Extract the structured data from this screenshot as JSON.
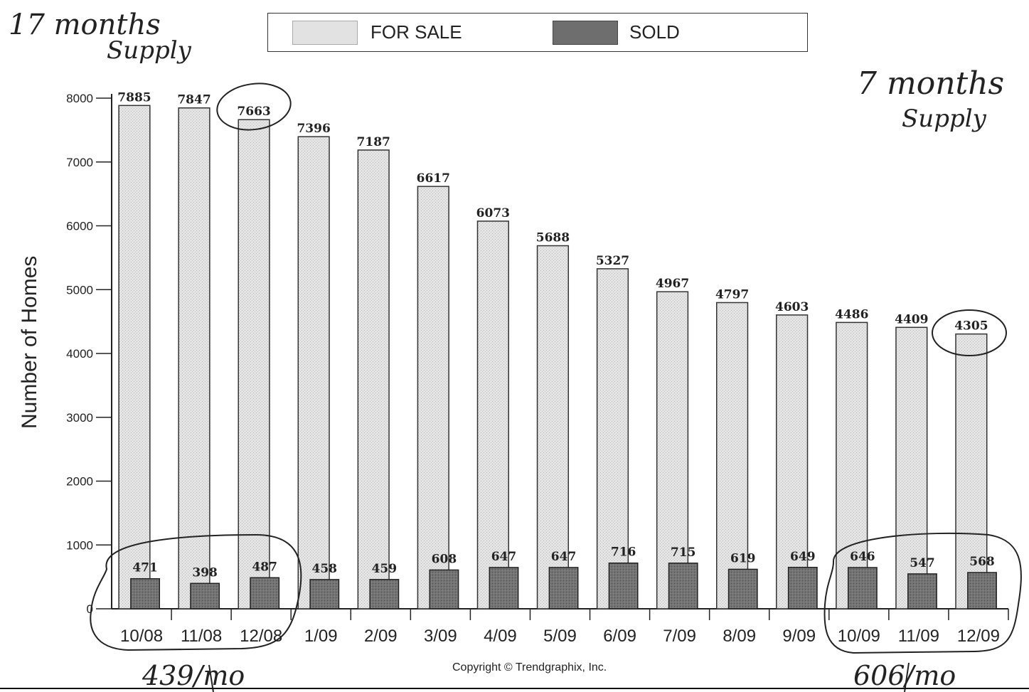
{
  "chart_data": {
    "type": "bar",
    "ylabel": "Number of Homes",
    "ylim": [
      0,
      8000
    ],
    "yticks": [
      0,
      1000,
      2000,
      3000,
      4000,
      5000,
      6000,
      7000,
      8000
    ],
    "categories": [
      "10/08",
      "11/08",
      "12/08",
      "1/09",
      "2/09",
      "3/09",
      "4/09",
      "5/09",
      "6/09",
      "7/09",
      "8/09",
      "9/09",
      "10/09",
      "11/09",
      "12/09"
    ],
    "series": [
      {
        "name": "FOR SALE",
        "color": "#e2e2e2",
        "values": [
          7885,
          7847,
          7663,
          7396,
          7187,
          6617,
          6073,
          5688,
          5327,
          4967,
          4797,
          4603,
          4486,
          4409,
          4305
        ]
      },
      {
        "name": "SOLD",
        "color": "#6e6e6e",
        "values": [
          471,
          398,
          487,
          458,
          459,
          608,
          647,
          647,
          716,
          715,
          619,
          649,
          646,
          547,
          568
        ]
      }
    ],
    "legend_position": "top"
  },
  "copyright": "Copyright © Trendgraphix, Inc.",
  "annotations": {
    "top_left_line1": "17 months",
    "top_left_line2": "Supply",
    "top_right_line1": "7 months",
    "top_right_line2": "Supply",
    "bottom_left": "439/mo",
    "bottom_right": "606/mo"
  }
}
